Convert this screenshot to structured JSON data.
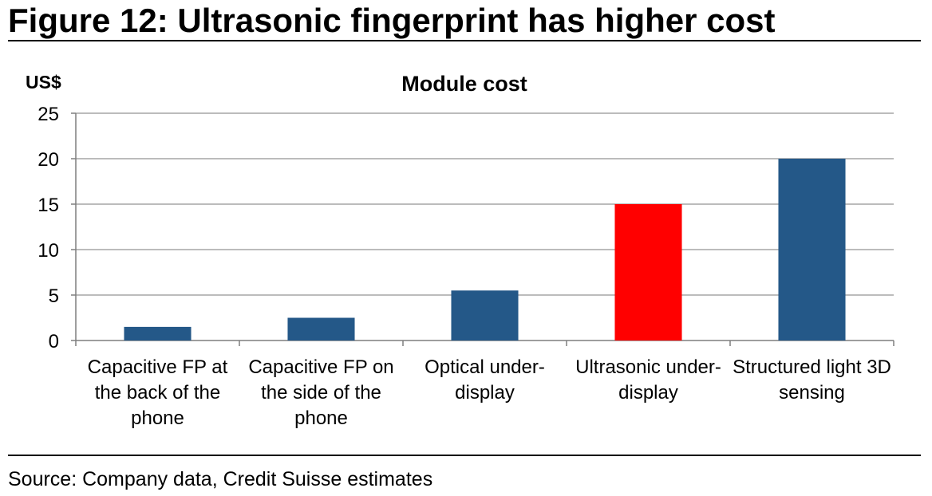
{
  "figure": {
    "title": "Figure 12: Ultrasonic fingerprint has higher cost",
    "source": "Source: Company data, Credit Suisse estimates"
  },
  "chart_data": {
    "type": "bar",
    "title": "Module cost",
    "ylabel": "US$",
    "xlabel": "",
    "ylim": [
      0,
      25
    ],
    "yticks": [
      0,
      5,
      10,
      15,
      20,
      25
    ],
    "grid": true,
    "categories": [
      [
        "Capacitive FP at",
        "the back of the",
        "phone"
      ],
      [
        "Capacitive FP on",
        "the side of the",
        "phone"
      ],
      [
        "Optical under-",
        "display"
      ],
      [
        "Ultrasonic under-",
        "display"
      ],
      [
        "Structured light 3D",
        "sensing"
      ]
    ],
    "values": [
      1.5,
      2.5,
      5.5,
      15,
      20
    ],
    "colors": [
      "#245888",
      "#245888",
      "#245888",
      "#ff0000",
      "#245888"
    ],
    "gridColor": "#a6a6a6"
  }
}
